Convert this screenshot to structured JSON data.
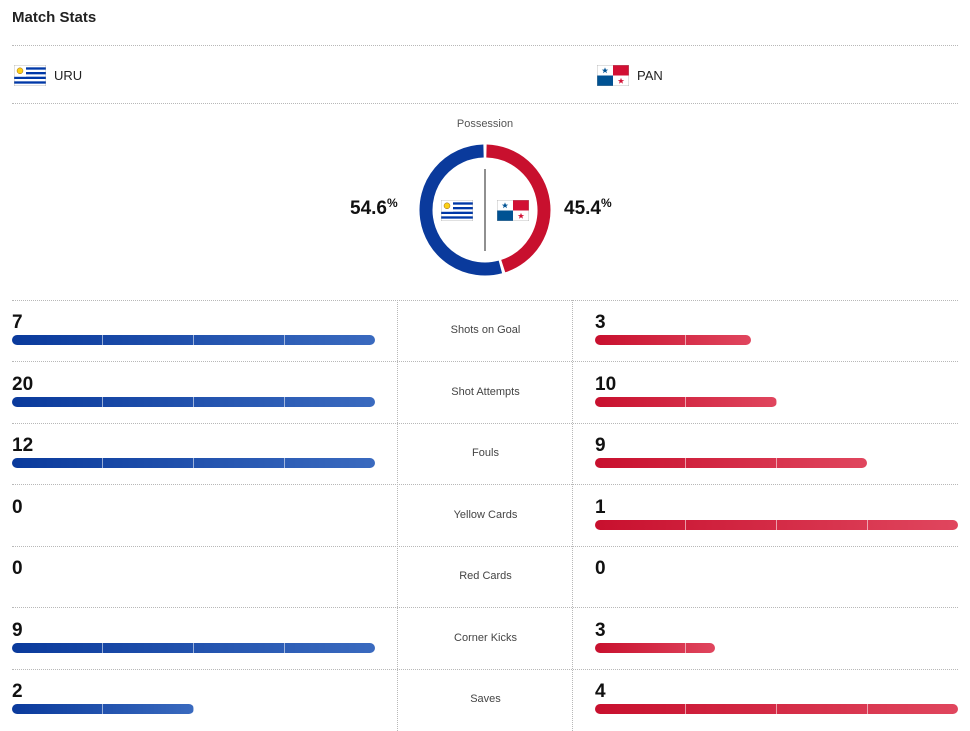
{
  "header": {
    "title": "Match Stats"
  },
  "teams": {
    "home": {
      "abbr": "URU",
      "flag_icon": "uruguay-flag-icon",
      "color": "#0a3a9c"
    },
    "away": {
      "abbr": "PAN",
      "flag_icon": "panama-flag-icon",
      "color": "#c8102e"
    }
  },
  "possession": {
    "label": "Possession",
    "home_value": "54.6",
    "away_value": "45.4",
    "unit": "%",
    "home_fraction": 0.546,
    "away_fraction": 0.454
  },
  "stats": [
    {
      "label": "Shots on Goal",
      "home": "7",
      "away": "3",
      "home_fill": 1.0,
      "away_fill": 0.43
    },
    {
      "label": "Shot Attempts",
      "home": "20",
      "away": "10",
      "home_fill": 1.0,
      "away_fill": 0.5
    },
    {
      "label": "Fouls",
      "home": "12",
      "away": "9",
      "home_fill": 1.0,
      "away_fill": 0.75
    },
    {
      "label": "Yellow Cards",
      "home": "0",
      "away": "1",
      "home_fill": 0.0,
      "away_fill": 1.0
    },
    {
      "label": "Red Cards",
      "home": "0",
      "away": "0",
      "home_fill": 0.0,
      "away_fill": 0.0
    },
    {
      "label": "Corner Kicks",
      "home": "9",
      "away": "3",
      "home_fill": 1.0,
      "away_fill": 0.33
    },
    {
      "label": "Saves",
      "home": "2",
      "away": "4",
      "home_fill": 0.5,
      "away_fill": 1.0
    }
  ]
}
